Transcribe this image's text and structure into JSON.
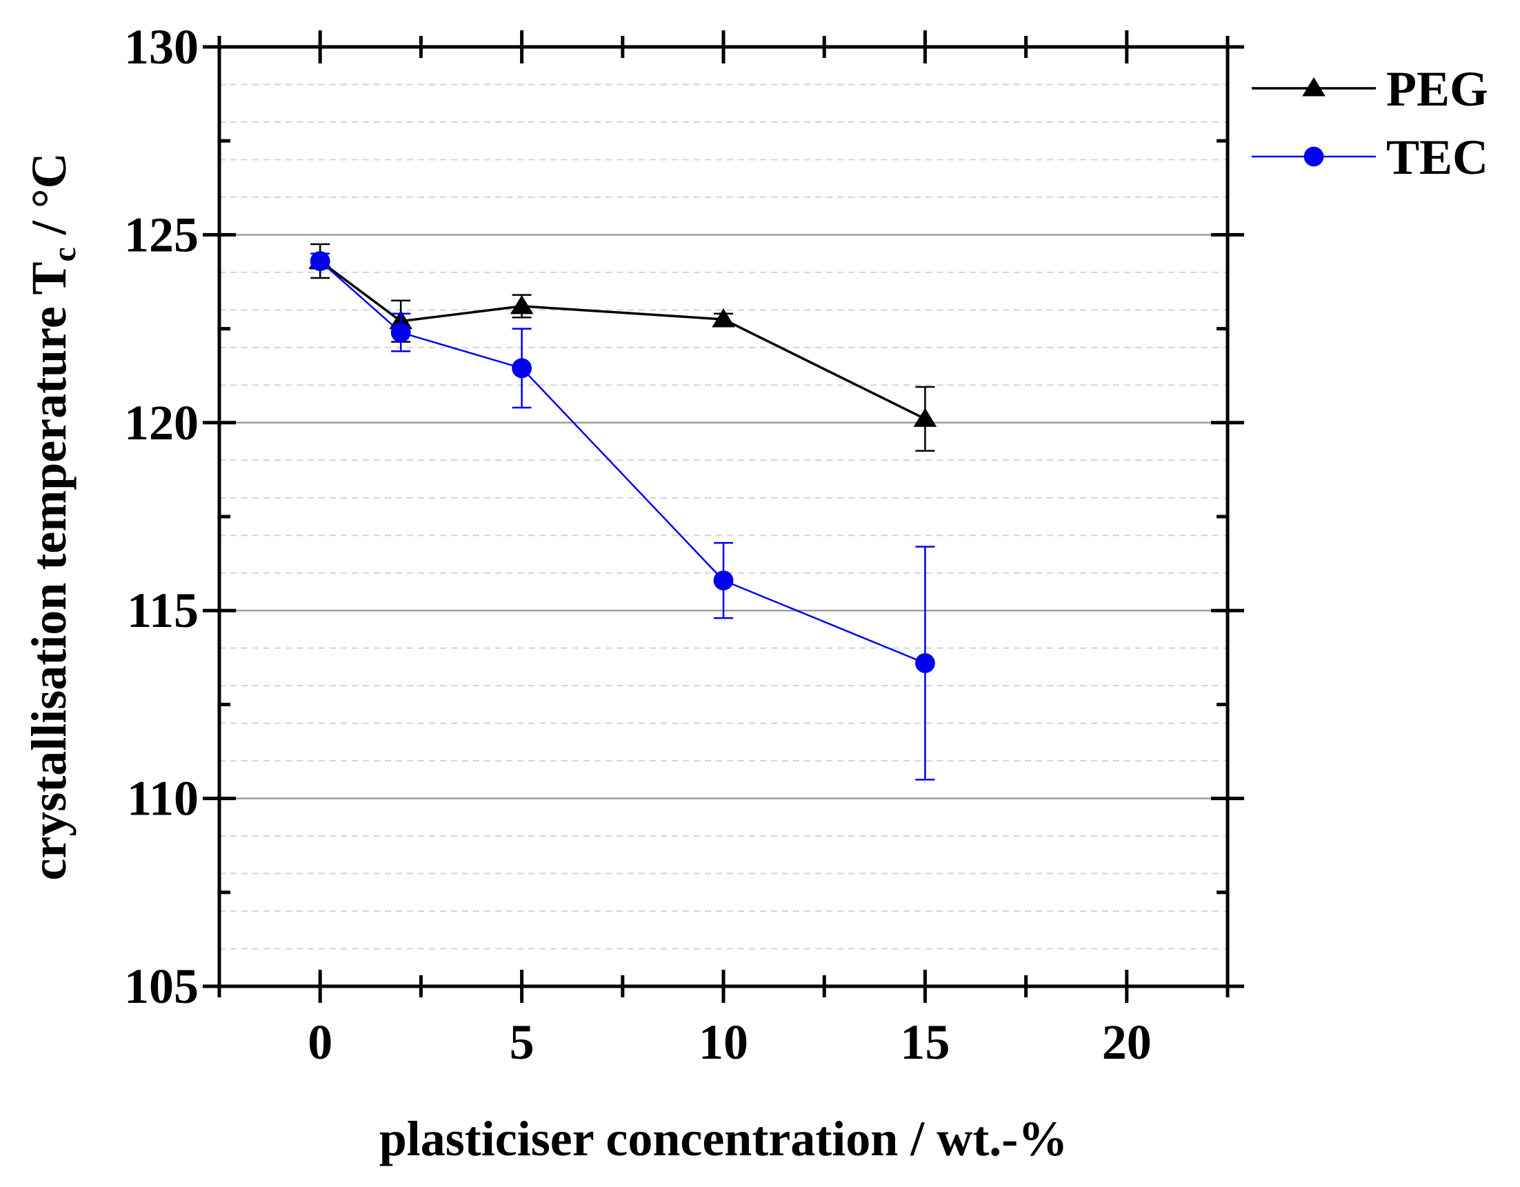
{
  "chart_data": {
    "type": "line",
    "title": "",
    "xlabel": "plasticiser concentration / wt.-%",
    "ylabel": {
      "main": "crystallisation temperature T",
      "subscript": "c",
      "unit": " / °C"
    },
    "xlim": [
      -2.5,
      22.5
    ],
    "ylim": [
      105,
      130
    ],
    "x_ticks": [
      0,
      5,
      10,
      15,
      20
    ],
    "y_ticks": [
      105,
      110,
      115,
      120,
      125,
      130
    ],
    "grid": true,
    "legend_position": "top-right, outside plot area",
    "series": [
      {
        "name": "PEG",
        "color": "#000000",
        "marker": "triangle",
        "x": [
          0,
          2,
          5,
          10,
          15
        ],
        "y": [
          124.3,
          122.7,
          123.1,
          122.75,
          120.1
        ],
        "error": [
          0.45,
          0.55,
          0.3,
          0.15,
          0.85
        ]
      },
      {
        "name": "TEC",
        "color": "#0000ee",
        "marker": "circle",
        "x": [
          0,
          2,
          5,
          10,
          15
        ],
        "y": [
          124.3,
          122.4,
          121.45,
          115.8,
          113.6
        ],
        "error": [
          0.2,
          0.5,
          1.05,
          1.0,
          3.1
        ]
      }
    ]
  }
}
